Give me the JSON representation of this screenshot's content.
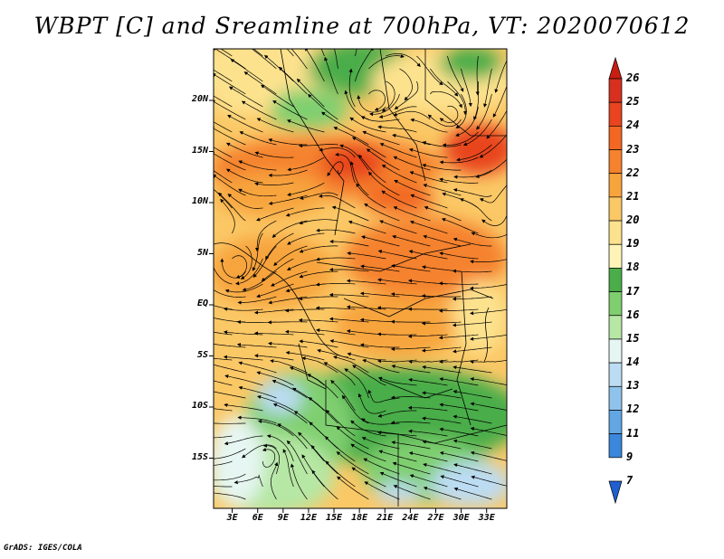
{
  "title": "WBPT [C] and Sreamline at 700hPa, VT: 2020070612",
  "credit": "GrADS: IGES/COLA",
  "map": {
    "lat_labels": [
      {
        "lat": 20,
        "label": "20N"
      },
      {
        "lat": 15,
        "label": "15N"
      },
      {
        "lat": 10,
        "label": "10N"
      },
      {
        "lat": 5,
        "label": "5N"
      },
      {
        "lat": 0,
        "label": "EQ"
      },
      {
        "lat": -5,
        "label": "5S"
      },
      {
        "lat": -10,
        "label": "10S"
      },
      {
        "lat": -15,
        "label": "15S"
      }
    ],
    "lon_labels": [
      {
        "lon": 3,
        "label": "3E"
      },
      {
        "lon": 6,
        "label": "6E"
      },
      {
        "lon": 9,
        "label": "9E"
      },
      {
        "lon": 12,
        "label": "12E"
      },
      {
        "lon": 15,
        "label": "15E"
      },
      {
        "lon": 18,
        "label": "18E"
      },
      {
        "lon": 21,
        "label": "21E"
      },
      {
        "lon": 24,
        "label": "24E"
      },
      {
        "lon": 27,
        "label": "27E"
      },
      {
        "lon": 30,
        "label": "30E"
      },
      {
        "lon": 33,
        "label": "33E"
      }
    ]
  },
  "colorbar": {
    "levels": [
      {
        "label": "26",
        "color": "#c81e12"
      },
      {
        "label": "25",
        "color": "#d7301f"
      },
      {
        "label": "24",
        "color": "#e8441f"
      },
      {
        "label": "23",
        "color": "#f26722"
      },
      {
        "label": "22",
        "color": "#f5822d"
      },
      {
        "label": "21",
        "color": "#f7a43c"
      },
      {
        "label": "20",
        "color": "#fbc866"
      },
      {
        "label": "19",
        "color": "#fde28e"
      },
      {
        "label": "18",
        "color": "#fff4b8"
      },
      {
        "label": "17",
        "color": "#4aad4a"
      },
      {
        "label": "16",
        "color": "#7fcf6f"
      },
      {
        "label": "15",
        "color": "#b6e7a4"
      },
      {
        "label": "14",
        "color": "#e6f6f2"
      },
      {
        "label": "13",
        "color": "#bcdcf3"
      },
      {
        "label": "12",
        "color": "#8fc3ec"
      },
      {
        "label": "11",
        "color": "#62a6e3"
      },
      {
        "label": "9",
        "color": "#3a87db"
      },
      {
        "label": "7",
        "color": "#1f5fd1"
      }
    ]
  }
}
